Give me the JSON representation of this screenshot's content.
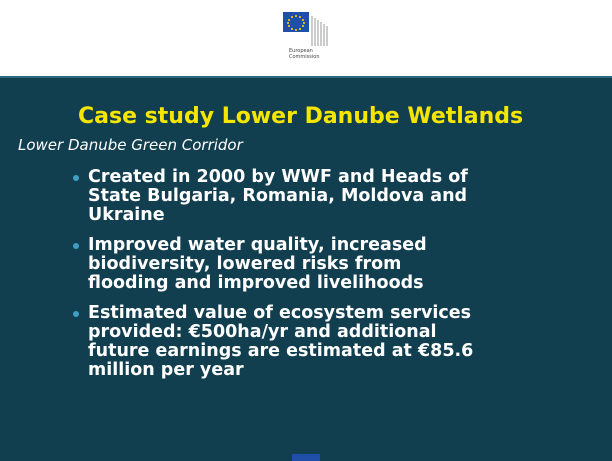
{
  "header": {
    "logo_lines": [
      "European",
      "Commission"
    ]
  },
  "title": "Case study Lower Danube Wetlands",
  "subtitle": "Lower Danube Green Corridor",
  "bullets": [
    [
      "Created in 2000 by WWF and Heads of",
      "State Bulgaria, Romania, Moldova and",
      "Ukraine"
    ],
    [
      "Improved water quality, increased",
      "biodiversity, lowered risks from",
      "flooding and improved livelihoods"
    ],
    [
      "Estimated value of ecosystem services",
      "provided: €500ha/yr and additional",
      "future earnings are estimated at €85.6",
      "million per year"
    ]
  ]
}
